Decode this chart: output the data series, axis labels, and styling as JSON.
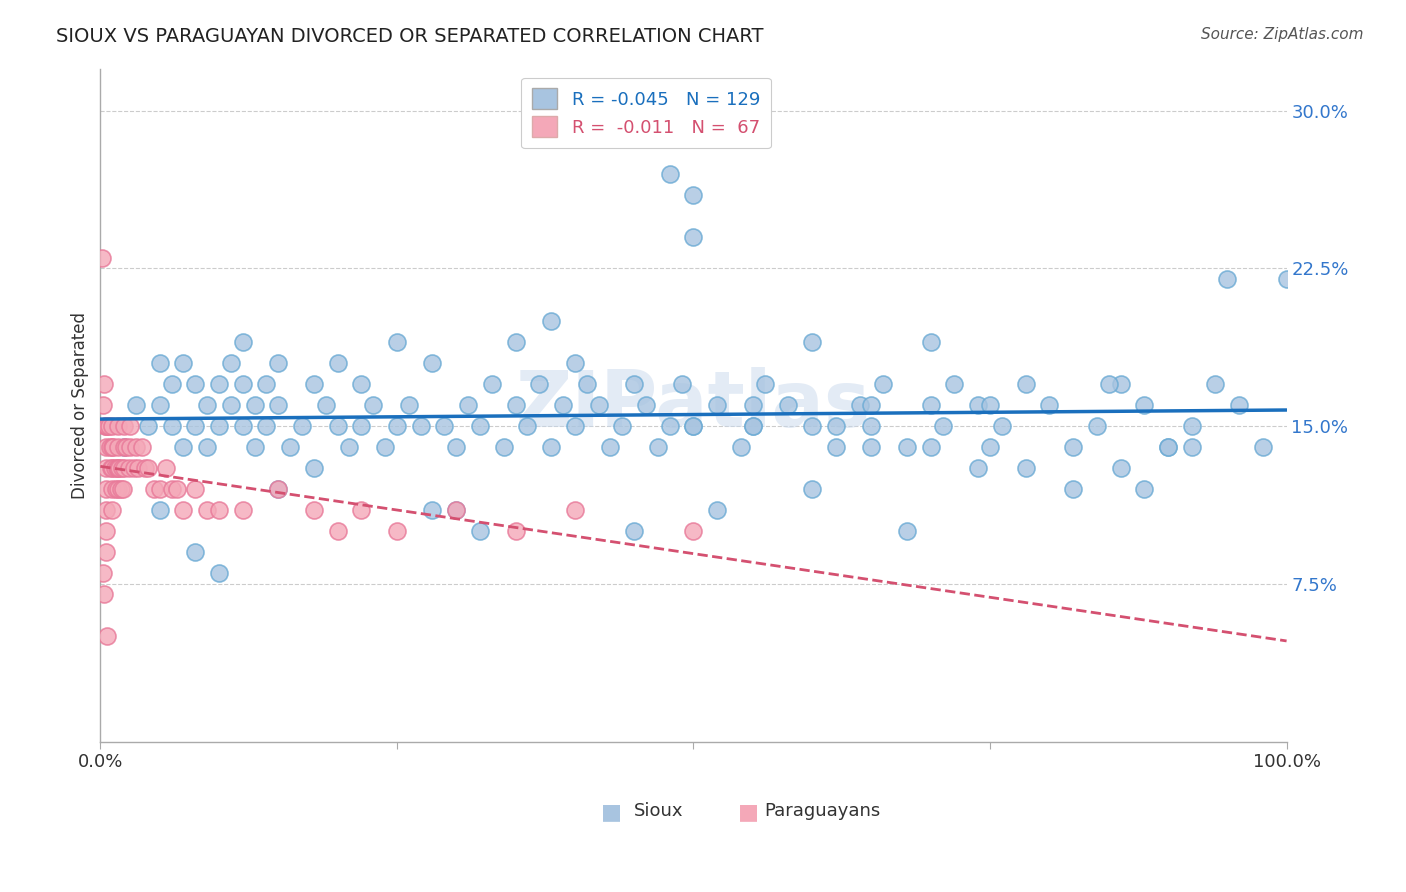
{
  "title": "SIOUX VS PARAGUAYAN DIVORCED OR SEPARATED CORRELATION CHART",
  "source": "Source: ZipAtlas.com",
  "ylabel": "Divorced or Separated",
  "xlim": [
    0.0,
    1.0
  ],
  "ylim": [
    0.0,
    0.32
  ],
  "ytick_labels": [
    "7.5%",
    "15.0%",
    "22.5%",
    "30.0%"
  ],
  "ytick_values": [
    0.075,
    0.15,
    0.225,
    0.3
  ],
  "sioux_color": "#a8c4e0",
  "sioux_edge_color": "#6aaad4",
  "paraguayan_color": "#f4a8b8",
  "paraguayan_edge_color": "#e87898",
  "sioux_line_color": "#1a6fbd",
  "paraguayan_line_color": "#d45070",
  "sioux_R": -0.045,
  "sioux_N": 129,
  "paraguayan_R": -0.011,
  "paraguayan_N": 67,
  "background_color": "#ffffff",
  "grid_color": "#cccccc",
  "sioux_x": [
    0.02,
    0.03,
    0.04,
    0.05,
    0.05,
    0.06,
    0.06,
    0.07,
    0.07,
    0.08,
    0.08,
    0.09,
    0.09,
    0.1,
    0.1,
    0.11,
    0.11,
    0.12,
    0.12,
    0.13,
    0.13,
    0.14,
    0.14,
    0.15,
    0.15,
    0.16,
    0.17,
    0.18,
    0.18,
    0.19,
    0.2,
    0.21,
    0.22,
    0.22,
    0.23,
    0.24,
    0.25,
    0.26,
    0.27,
    0.28,
    0.29,
    0.3,
    0.31,
    0.32,
    0.33,
    0.34,
    0.35,
    0.36,
    0.37,
    0.38,
    0.39,
    0.4,
    0.41,
    0.42,
    0.43,
    0.44,
    0.45,
    0.46,
    0.47,
    0.48,
    0.49,
    0.5,
    0.52,
    0.54,
    0.55,
    0.56,
    0.58,
    0.6,
    0.62,
    0.64,
    0.65,
    0.66,
    0.68,
    0.7,
    0.71,
    0.72,
    0.74,
    0.75,
    0.76,
    0.78,
    0.8,
    0.82,
    0.84,
    0.86,
    0.88,
    0.9,
    0.92,
    0.94,
    0.96,
    0.98,
    1.0,
    0.5,
    0.6,
    0.7,
    0.12,
    0.25,
    0.4,
    0.55,
    0.65,
    0.75,
    0.85,
    0.92,
    0.15,
    0.3,
    0.45,
    0.6,
    0.35,
    0.5,
    0.62,
    0.74,
    0.86,
    0.48,
    0.78,
    0.88,
    0.05,
    0.32,
    0.52,
    0.68,
    0.82,
    0.95,
    0.55,
    0.2,
    0.08,
    0.1,
    0.28,
    0.7,
    0.5,
    0.9,
    0.38,
    0.65
  ],
  "sioux_y": [
    0.14,
    0.16,
    0.15,
    0.16,
    0.18,
    0.15,
    0.17,
    0.14,
    0.18,
    0.15,
    0.17,
    0.14,
    0.16,
    0.15,
    0.17,
    0.16,
    0.18,
    0.15,
    0.17,
    0.14,
    0.16,
    0.15,
    0.17,
    0.16,
    0.18,
    0.14,
    0.15,
    0.17,
    0.13,
    0.16,
    0.15,
    0.14,
    0.15,
    0.17,
    0.16,
    0.14,
    0.15,
    0.16,
    0.15,
    0.18,
    0.15,
    0.14,
    0.16,
    0.15,
    0.17,
    0.14,
    0.16,
    0.15,
    0.17,
    0.14,
    0.16,
    0.15,
    0.17,
    0.16,
    0.14,
    0.15,
    0.17,
    0.16,
    0.14,
    0.15,
    0.17,
    0.15,
    0.16,
    0.14,
    0.15,
    0.17,
    0.16,
    0.15,
    0.14,
    0.16,
    0.15,
    0.17,
    0.14,
    0.16,
    0.15,
    0.17,
    0.16,
    0.14,
    0.15,
    0.17,
    0.16,
    0.14,
    0.15,
    0.17,
    0.16,
    0.14,
    0.15,
    0.17,
    0.16,
    0.14,
    0.22,
    0.24,
    0.19,
    0.19,
    0.19,
    0.19,
    0.18,
    0.15,
    0.14,
    0.16,
    0.17,
    0.14,
    0.12,
    0.11,
    0.1,
    0.12,
    0.19,
    0.26,
    0.15,
    0.13,
    0.13,
    0.27,
    0.13,
    0.12,
    0.11,
    0.1,
    0.11,
    0.1,
    0.12,
    0.22,
    0.16,
    0.18,
    0.09,
    0.08,
    0.11,
    0.14,
    0.15,
    0.14,
    0.2,
    0.16
  ],
  "paraguayan_x": [
    0.002,
    0.003,
    0.004,
    0.005,
    0.005,
    0.005,
    0.005,
    0.005,
    0.005,
    0.005,
    0.006,
    0.007,
    0.008,
    0.009,
    0.01,
    0.01,
    0.01,
    0.01,
    0.01,
    0.011,
    0.012,
    0.013,
    0.014,
    0.015,
    0.015,
    0.015,
    0.015,
    0.016,
    0.017,
    0.018,
    0.019,
    0.02,
    0.02,
    0.02,
    0.022,
    0.024,
    0.025,
    0.025,
    0.028,
    0.03,
    0.032,
    0.035,
    0.038,
    0.04,
    0.045,
    0.05,
    0.055,
    0.06,
    0.065,
    0.07,
    0.08,
    0.09,
    0.1,
    0.12,
    0.15,
    0.18,
    0.2,
    0.22,
    0.25,
    0.3,
    0.35,
    0.4,
    0.5,
    0.001,
    0.002,
    0.003,
    0.006
  ],
  "paraguayan_y": [
    0.16,
    0.17,
    0.15,
    0.15,
    0.14,
    0.13,
    0.12,
    0.11,
    0.1,
    0.09,
    0.15,
    0.15,
    0.14,
    0.13,
    0.15,
    0.14,
    0.13,
    0.12,
    0.11,
    0.14,
    0.13,
    0.12,
    0.13,
    0.15,
    0.14,
    0.13,
    0.12,
    0.13,
    0.12,
    0.13,
    0.12,
    0.15,
    0.14,
    0.13,
    0.14,
    0.13,
    0.15,
    0.14,
    0.13,
    0.14,
    0.13,
    0.14,
    0.13,
    0.13,
    0.12,
    0.12,
    0.13,
    0.12,
    0.12,
    0.11,
    0.12,
    0.11,
    0.11,
    0.11,
    0.12,
    0.11,
    0.1,
    0.11,
    0.1,
    0.11,
    0.1,
    0.11,
    0.1,
    0.23,
    0.08,
    0.07,
    0.05
  ]
}
